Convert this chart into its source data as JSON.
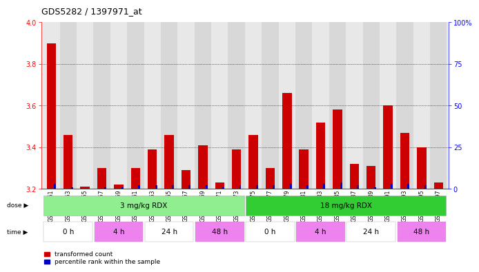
{
  "title": "GDS5282 / 1397971_at",
  "samples": [
    "GSM306951",
    "GSM306953",
    "GSM306955",
    "GSM306957",
    "GSM306959",
    "GSM306961",
    "GSM306963",
    "GSM306965",
    "GSM306967",
    "GSM306969",
    "GSM306971",
    "GSM306973",
    "GSM306975",
    "GSM306977",
    "GSM306979",
    "GSM306981",
    "GSM306983",
    "GSM306985",
    "GSM306987",
    "GSM306989",
    "GSM306991",
    "GSM306993",
    "GSM306995",
    "GSM306997"
  ],
  "red_values": [
    3.9,
    3.46,
    3.21,
    3.3,
    3.22,
    3.3,
    3.39,
    3.46,
    3.29,
    3.41,
    3.23,
    3.39,
    3.46,
    3.3,
    3.66,
    3.39,
    3.52,
    3.58,
    3.32,
    3.31,
    3.6,
    3.47,
    3.4,
    3.23
  ],
  "blue_values": [
    3,
    1,
    0,
    1,
    1,
    2,
    2,
    2,
    2,
    2,
    1,
    2,
    2,
    2,
    3,
    2,
    3,
    4,
    2,
    1,
    3,
    3,
    2,
    0
  ],
  "ylim_left": [
    3.2,
    4.0
  ],
  "ylim_right": [
    0,
    100
  ],
  "yticks_left": [
    3.2,
    3.4,
    3.6,
    3.8,
    4.0
  ],
  "yticks_right": [
    0,
    25,
    50,
    75,
    100
  ],
  "ytick_labels_right": [
    "0",
    "25",
    "50",
    "75",
    "100%"
  ],
  "dose_groups": [
    {
      "label": "3 mg/kg RDX",
      "start": 0,
      "end": 11,
      "color": "#90ee90"
    },
    {
      "label": "18 mg/kg RDX",
      "start": 12,
      "end": 23,
      "color": "#32cd32"
    }
  ],
  "time_groups": [
    {
      "label": "0 h",
      "start": 0,
      "end": 2,
      "color": "#ffffff"
    },
    {
      "label": "4 h",
      "start": 3,
      "end": 5,
      "color": "#ee82ee"
    },
    {
      "label": "24 h",
      "start": 6,
      "end": 8,
      "color": "#ffffff"
    },
    {
      "label": "48 h",
      "start": 9,
      "end": 11,
      "color": "#ee82ee"
    },
    {
      "label": "0 h",
      "start": 12,
      "end": 14,
      "color": "#ffffff"
    },
    {
      "label": "4 h",
      "start": 15,
      "end": 17,
      "color": "#ee82ee"
    },
    {
      "label": "24 h",
      "start": 18,
      "end": 20,
      "color": "#ffffff"
    },
    {
      "label": "48 h",
      "start": 21,
      "end": 23,
      "color": "#ee82ee"
    }
  ],
  "red_color": "#cc0000",
  "blue_color": "#0000cc",
  "bg_color": "#ffffff",
  "plot_bg_color": "#e8e8e8",
  "legend_red": "transformed count",
  "legend_blue": "percentile rank within the sample"
}
